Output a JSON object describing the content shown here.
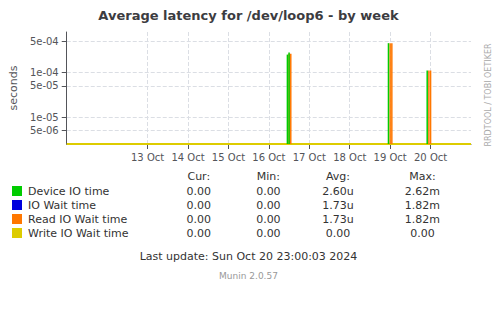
{
  "chart_data": {
    "type": "stem",
    "title": "Average latency for /dev/loop6 - by week",
    "ylabel": "seconds",
    "xlim": [
      1728604800,
      1729468800
    ],
    "xticks": [
      {
        "value": 1728777600,
        "label": "13 Oct"
      },
      {
        "value": 1728864000,
        "label": "14 Oct"
      },
      {
        "value": 1728950400,
        "label": "15 Oct"
      },
      {
        "value": 1729036800,
        "label": "16 Oct"
      },
      {
        "value": 1729123200,
        "label": "17 Oct"
      },
      {
        "value": 1729209600,
        "label": "18 Oct"
      },
      {
        "value": 1729296000,
        "label": "19 Oct"
      },
      {
        "value": 1729382400,
        "label": "20 Oct"
      }
    ],
    "ylim": [
      2.5e-06,
      0.0008
    ],
    "yticks": [
      {
        "value": 5e-06,
        "label": "5e-06"
      },
      {
        "value": 1e-05,
        "label": "1e-05"
      },
      {
        "value": 5e-05,
        "label": "5e-05"
      },
      {
        "value": 0.0001,
        "label": "1e-04"
      },
      {
        "value": 0.0005,
        "label": "5e-04"
      }
    ],
    "log": "y",
    "grid": true,
    "legend": "bottom",
    "series": [
      {
        "name": "Device IO time",
        "color": "#00cc00",
        "type": "stem",
        "x": [
          1729076400,
          1729080000,
          1729292400,
          1729375200
        ],
        "values": [
          0.00025,
          0.00028,
          0.00045,
          0.00011
        ]
      },
      {
        "name": "IO Wait time",
        "color": "#0000dd",
        "type": "stem",
        "x": [],
        "values": []
      },
      {
        "name": "Read IO Wait time",
        "color": "#ff7700",
        "type": "stem",
        "x": [
          1729080000,
          1729083600,
          1729296000,
          1729299600,
          1729378800,
          1729382400
        ],
        "values": [
          0.000262,
          0.000262,
          0.00045,
          0.00045,
          0.00011,
          0.00011
        ]
      },
      {
        "name": "Write IO Wait time",
        "color": "#ddcc00",
        "type": "hline",
        "values": [
          2.5e-06
        ]
      }
    ],
    "table_headers": [
      "Cur:",
      "Min:",
      "Avg:",
      "Max:"
    ],
    "table_rows": [
      [
        "0.00",
        "0.00",
        "2.60u",
        "2.62m"
      ],
      [
        "0.00",
        "0.00",
        "1.73u",
        "1.82m"
      ],
      [
        "0.00",
        "0.00",
        "1.73u",
        "1.82m"
      ],
      [
        "0.00",
        "0.00",
        "0.00",
        "0.00"
      ]
    ],
    "footer": "Last update: Sun Oct 20 23:00:03 2024",
    "watermark": "Munin 2.0.57",
    "side_label": "RRDTOOL / TOBI OETIKER"
  }
}
